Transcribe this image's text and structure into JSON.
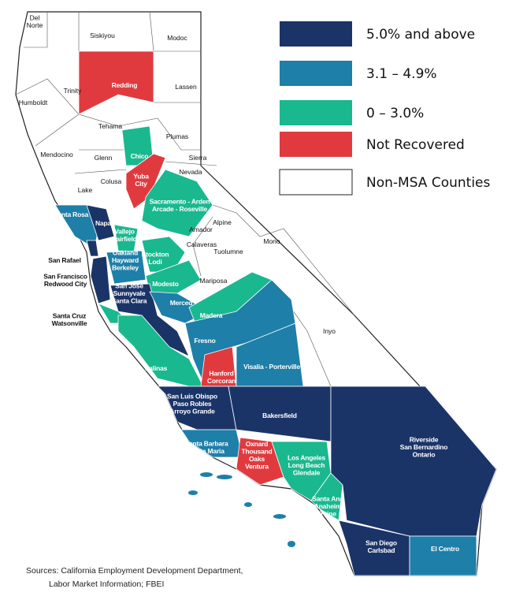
{
  "map": {
    "legend": [
      {
        "label": "5.0% and above",
        "color": "#1b3468"
      },
      {
        "label": "3.1 – 4.9%",
        "color": "#1e7fa8"
      },
      {
        "label": "0 – 3.0%",
        "color": "#1ab88f"
      },
      {
        "label": "Not Recovered",
        "color": "#e03a3f"
      },
      {
        "label": "Non-MSA Counties",
        "color": "#ffffff"
      }
    ],
    "regions": [
      {
        "name": [
          "Redding"
        ],
        "color": "#e03a3f"
      },
      {
        "name": [
          "Chico"
        ],
        "color": "#1ab88f"
      },
      {
        "name": [
          "Yuba",
          "City"
        ],
        "color": "#e03a3f"
      },
      {
        "name": [
          "Sacramento - Arden",
          "Arcade - Roseville"
        ],
        "color": "#1ab88f"
      },
      {
        "name": [
          "Santa Rosa"
        ],
        "color": "#1e7fa8"
      },
      {
        "name": [
          "Napa"
        ],
        "color": "#1b3468"
      },
      {
        "name": [
          "Vallejo",
          "Fairfield"
        ],
        "color": "#1ab88f"
      },
      {
        "name": [
          "Oakland",
          "Hayward",
          "Berkeley"
        ],
        "color": "#1e7fa8"
      },
      {
        "name": [
          "Stockton",
          "Lodi"
        ],
        "color": "#1ab88f"
      },
      {
        "name": [
          "Modesto"
        ],
        "color": "#1ab88f"
      },
      {
        "name": [
          "San Rafael"
        ],
        "color": "#1b3468"
      },
      {
        "name": [
          "San Francisco",
          "Redwood City"
        ],
        "color": "#1b3468"
      },
      {
        "name": [
          "San Jose",
          "Sunnyvale",
          "Santa Clara"
        ],
        "color": "#1b3468"
      },
      {
        "name": [
          "Santa Cruz",
          "Watsonville"
        ],
        "color": "#1ab88f"
      },
      {
        "name": [
          "Merced"
        ],
        "color": "#1e7fa8"
      },
      {
        "name": [
          "Madera"
        ],
        "color": "#1ab88f"
      },
      {
        "name": [
          "Fresno"
        ],
        "color": "#1e7fa8"
      },
      {
        "name": [
          "Salinas"
        ],
        "color": "#1ab88f"
      },
      {
        "name": [
          "Hanford",
          "Corcoran"
        ],
        "color": "#e03a3f"
      },
      {
        "name": [
          "Visalia - Porterville"
        ],
        "color": "#1e7fa8"
      },
      {
        "name": [
          "San Luis Obispo",
          "Paso Robles",
          "Arroyo Grande"
        ],
        "color": "#1b3468"
      },
      {
        "name": [
          "Bakersfield"
        ],
        "color": "#1b3468"
      },
      {
        "name": [
          "Santa Barbara",
          "Santa Maria"
        ],
        "color": "#1e7fa8"
      },
      {
        "name": [
          "Oxnard",
          "Thousand",
          "Oaks",
          "Ventura"
        ],
        "color": "#e03a3f"
      },
      {
        "name": [
          "Los Angeles",
          "Long Beach",
          "Glendale"
        ],
        "color": "#1ab88f"
      },
      {
        "name": [
          "Santa Ana",
          "Anaheim",
          "Irvine"
        ],
        "color": "#1ab88f"
      },
      {
        "name": [
          "Riverside",
          "San Bernardino",
          "Ontario"
        ],
        "color": "#1b3468"
      },
      {
        "name": [
          "San Diego",
          "Carlsbad"
        ],
        "color": "#1b3468"
      },
      {
        "name": [
          "El Centro"
        ],
        "color": "#1e7fa8"
      }
    ],
    "counties": [
      [
        "Del",
        "Norte"
      ],
      [
        "Siskiyou"
      ],
      [
        "Modoc"
      ],
      [
        "Humboldt"
      ],
      [
        "Trinity"
      ],
      [
        "Lassen"
      ],
      [
        "Tehama"
      ],
      [
        "Plumas"
      ],
      [
        "Mendocino"
      ],
      [
        "Glenn"
      ],
      [
        "Sierra"
      ],
      [
        "Nevada"
      ],
      [
        "Colusa"
      ],
      [
        "Lake"
      ],
      [
        "Alpine"
      ],
      [
        "Amador"
      ],
      [
        "Calaveras"
      ],
      [
        "Tuolumne"
      ],
      [
        "Mono"
      ],
      [
        "Mariposa"
      ],
      [
        "Inyo"
      ]
    ],
    "source": [
      "Sources: California Employment Development Department,",
      "Labor Market Information; FBEI"
    ]
  }
}
